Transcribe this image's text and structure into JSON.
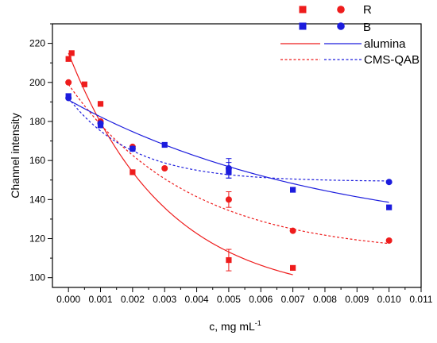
{
  "chart_data": {
    "type": "scatter",
    "xlabel": "c, mg mL",
    "xlabel_sup": "-1",
    "ylabel": "Channel intensity",
    "xlim": [
      -0.0005,
      0.011
    ],
    "ylim": [
      95,
      230
    ],
    "x_ticks": [
      "0.000",
      "0.001",
      "0.002",
      "0.003",
      "0.004",
      "0.005",
      "0.006",
      "0.007",
      "0.008",
      "0.009",
      "0.010",
      "0.011"
    ],
    "x_tick_values": [
      0,
      0.001,
      0.002,
      0.003,
      0.004,
      0.005,
      0.006,
      0.007,
      0.008,
      0.009,
      0.01,
      0.011
    ],
    "y_ticks": [
      "100",
      "120",
      "140",
      "160",
      "180",
      "200",
      "220"
    ],
    "y_tick_values": [
      100,
      120,
      140,
      160,
      180,
      200,
      220
    ],
    "legend": {
      "placement": "top-right",
      "col_headers": [
        "R",
        "B"
      ],
      "row_labels": [
        "alumina",
        "CMS-QAB"
      ]
    },
    "colors": {
      "R": "#ee1c1c",
      "B": "#1c1cdd"
    },
    "series": [
      {
        "channel": "R",
        "material": "alumina",
        "marker": "square",
        "points": [
          [
            0.0,
            212
          ],
          [
            0.0001,
            215
          ],
          [
            0.0005,
            199
          ],
          [
            0.001,
            189
          ],
          [
            0.002,
            154
          ],
          [
            0.005,
            109
          ],
          [
            0.007,
            105
          ]
        ],
        "errors": [
          [
            0.005,
            109,
            5.5
          ]
        ],
        "fit": {
          "kind": "exp",
          "y0": 88.98,
          "A": 126.02,
          "t": 0.003029,
          "x_range": [
            0,
            0.007
          ],
          "style": "solid"
        }
      },
      {
        "channel": "R",
        "material": "CMS-QAB",
        "marker": "circle",
        "points": [
          [
            0.0,
            200
          ],
          [
            0.001,
            180
          ],
          [
            0.002,
            167
          ],
          [
            0.003,
            156
          ],
          [
            0.005,
            140
          ],
          [
            0.007,
            124
          ],
          [
            0.01,
            119
          ]
        ],
        "errors": [
          [
            0.005,
            140,
            4
          ]
        ],
        "fit": {
          "kind": "exp",
          "y0": 111.47,
          "A": 87.53,
          "t": 0.003735,
          "x_range": [
            0,
            0.01
          ],
          "style": "dashed"
        }
      },
      {
        "channel": "B",
        "material": "alumina",
        "marker": "square",
        "points": [
          [
            0.0,
            193
          ],
          [
            0.001,
            178
          ],
          [
            0.002,
            166
          ],
          [
            0.003,
            168
          ],
          [
            0.005,
            155
          ],
          [
            0.005,
            154
          ],
          [
            0.007,
            145
          ],
          [
            0.01,
            136
          ]
        ],
        "errors": [
          [
            0.005,
            155,
            4
          ]
        ],
        "fit": {
          "kind": "exp",
          "y0": 117.46,
          "A": 73.54,
          "t": 0.008017,
          "x_range": [
            0,
            0.01
          ],
          "style": "solid"
        }
      },
      {
        "channel": "B",
        "material": "CMS-QAB",
        "marker": "circle",
        "points": [
          [
            0.0,
            192
          ],
          [
            0.001,
            179
          ],
          [
            0.002,
            166
          ],
          [
            0.005,
            156
          ],
          [
            0.01,
            149
          ]
        ],
        "errors": [
          [
            0.005,
            156,
            5
          ]
        ],
        "fit": {
          "kind": "exp",
          "y0": 149.23,
          "A": 42.77,
          "t": 0.002,
          "x_range": [
            0,
            0.01
          ],
          "style": "dashed"
        }
      }
    ]
  }
}
